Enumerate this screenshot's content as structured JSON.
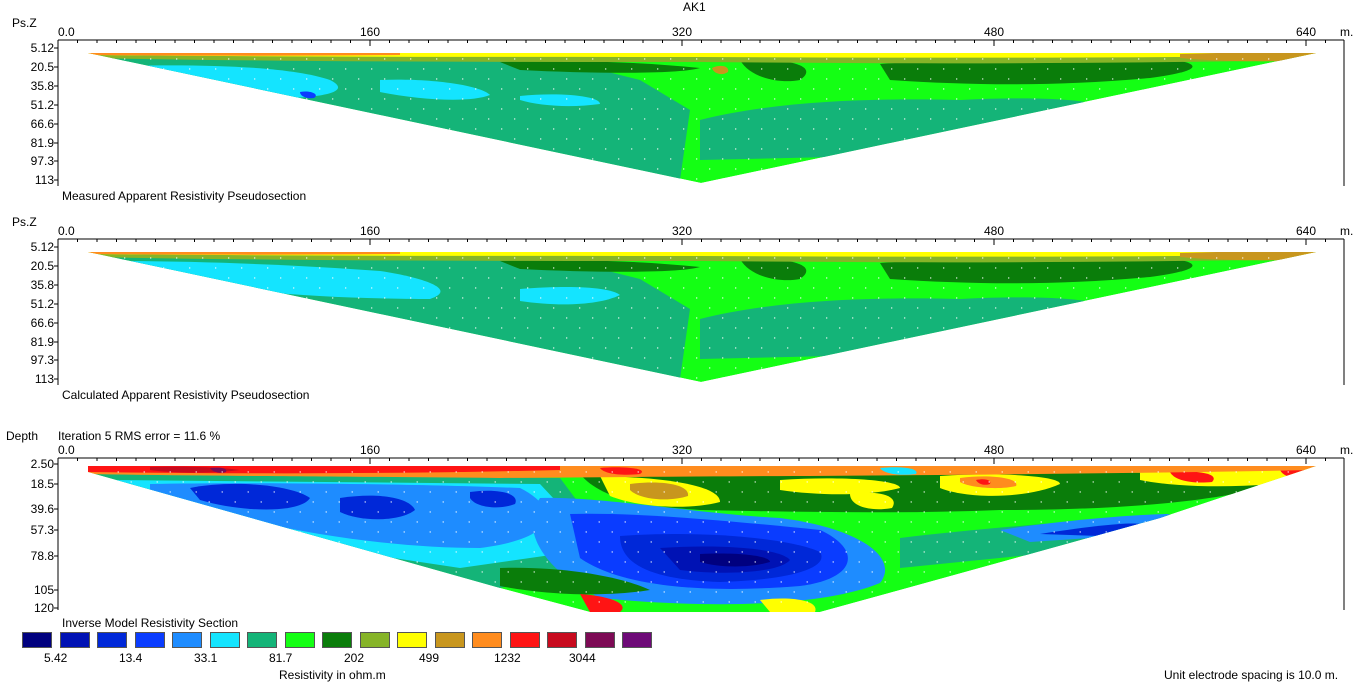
{
  "title": "AK1",
  "x_unit": "m.",
  "x_ticks": [
    "0.0",
    "160",
    "320",
    "480",
    "640"
  ],
  "colors": {
    "c1": "#00007f",
    "c2": "#0012b4",
    "c3": "#0028d8",
    "c4": "#0a3cff",
    "c5": "#1e8cff",
    "c6": "#14e4ff",
    "c7": "#14b478",
    "c8": "#14ff14",
    "c9": "#0a7d0a",
    "c10": "#86b428",
    "c11": "#ffff00",
    "c12": "#c8961e",
    "c13": "#ff8c1e",
    "c14": "#ff1414",
    "c15": "#c80a1e",
    "c16": "#7d0a55",
    "c17": "#6e0a78"
  },
  "panels": [
    {
      "axis_label": "Ps.Z",
      "caption": "Measured Apparent Resistivity Pseudosection",
      "depth_ticks": [
        "5.12",
        "20.5",
        "35.8",
        "51.2",
        "66.6",
        "81.9",
        "97.3",
        "113"
      ]
    },
    {
      "axis_label": "Ps.Z",
      "caption": "Calculated Apparent Resistivity Pseudosection",
      "depth_ticks": [
        "5.12",
        "20.5",
        "35.8",
        "51.2",
        "66.6",
        "81.9",
        "97.3",
        "113"
      ]
    },
    {
      "axis_label": "Depth",
      "subtitle": "Iteration 5 RMS error = 11.6 %",
      "caption": "Inverse Model Resistivity Section",
      "depth_ticks": [
        "2.50",
        "18.5",
        "39.6",
        "57.3",
        "78.8",
        "105",
        "120"
      ]
    }
  ],
  "legend": {
    "values": [
      "5.42",
      "13.4",
      "33.1",
      "81.7",
      "202",
      "499",
      "1232",
      "3044"
    ],
    "label": "Resistivity in ohm.m"
  },
  "footer_note": "Unit electrode spacing is 10.0 m.",
  "chart_data": {
    "type": "heatmap",
    "title": "AK1",
    "x_range": [
      0,
      640
    ],
    "x_ticks": [
      0,
      160,
      320,
      480,
      640
    ],
    "series": [
      {
        "name": "Measured Apparent Resistivity Pseudosection",
        "depth_ticks": [
          5.12,
          20.5,
          35.8,
          51.2,
          66.6,
          81.9,
          97.3,
          113
        ]
      },
      {
        "name": "Calculated Apparent Resistivity Pseudosection",
        "depth_ticks": [
          5.12,
          20.5,
          35.8,
          51.2,
          66.6,
          81.9,
          97.3,
          113
        ]
      },
      {
        "name": "Inverse Model Resistivity Section",
        "depth_ticks": [
          2.5,
          18.5,
          39.6,
          57.3,
          78.8,
          105,
          120
        ]
      }
    ],
    "legend_values": [
      5.42,
      13.4,
      33.1,
      81.7,
      202,
      499,
      1232,
      3044
    ],
    "legend_label": "Resistivity in ohm.m",
    "rms_error_percent": 11.6,
    "iteration": 5,
    "electrode_spacing_m": 10.0
  }
}
